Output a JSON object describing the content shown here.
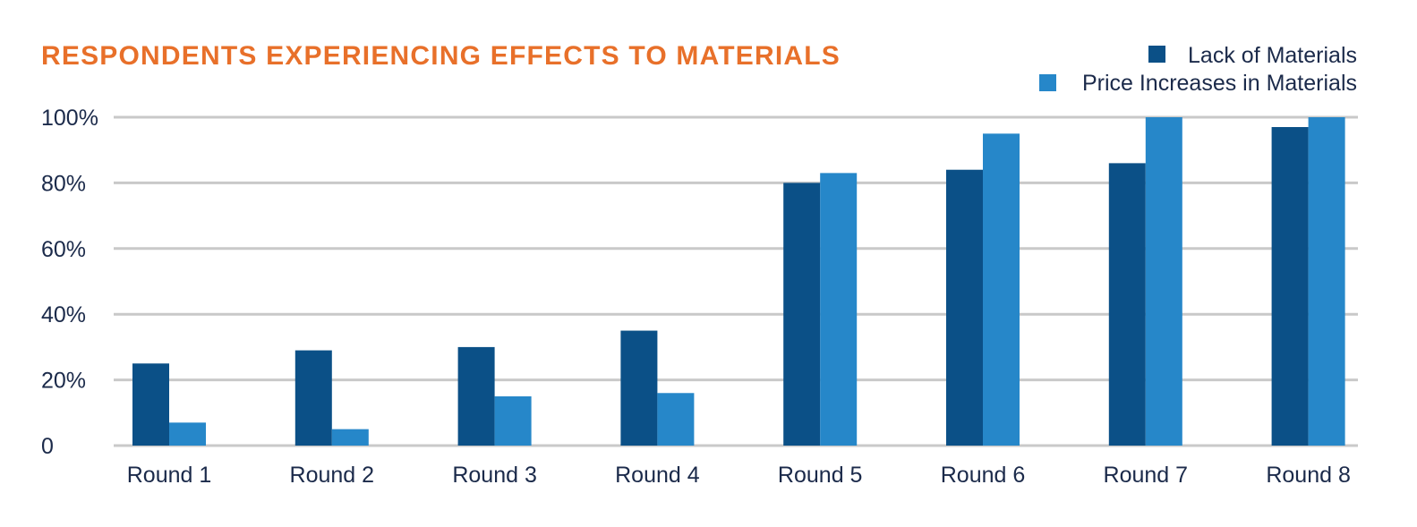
{
  "chart_data": {
    "type": "bar",
    "title": "RESPONDENTS EXPERIENCING EFFECTS TO MATERIALS",
    "categories": [
      "Round 1",
      "Round 2",
      "Round 3",
      "Round 4",
      "Round 5",
      "Round 6",
      "Round 7",
      "Round 8"
    ],
    "series": [
      {
        "name": "Lack of Materials",
        "color": "#0b5087",
        "values": [
          25,
          29,
          30,
          35,
          80,
          84,
          86,
          97
        ]
      },
      {
        "name": "Price Increases in Materials",
        "color": "#2687c9",
        "values": [
          7,
          5,
          15,
          16,
          83,
          95,
          100,
          100
        ]
      }
    ],
    "yticks": [
      {
        "value": 0,
        "label": "0"
      },
      {
        "value": 20,
        "label": "20%"
      },
      {
        "value": 40,
        "label": "40%"
      },
      {
        "value": 60,
        "label": "60%"
      },
      {
        "value": 80,
        "label": "80%"
      },
      {
        "value": 100,
        "label": "100%"
      }
    ],
    "ylim": [
      0,
      100
    ],
    "xlabel": "",
    "ylabel": "",
    "grid": true,
    "legend": "top-right",
    "colors": {
      "title": "#e8702a",
      "text": "#1b2a4a",
      "grid": "#c9c9c9"
    }
  }
}
